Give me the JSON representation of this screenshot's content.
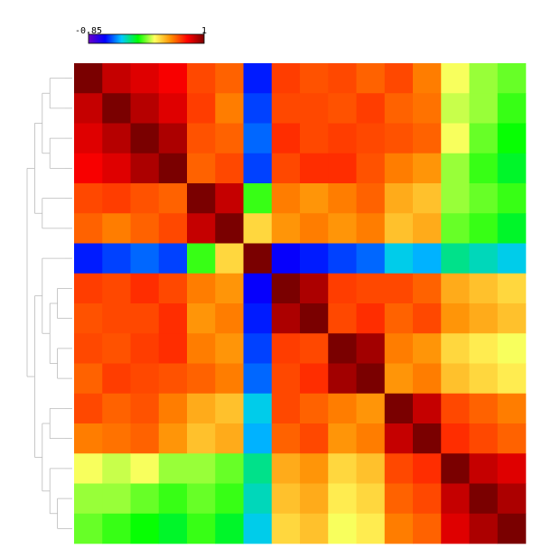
{
  "chart_data": {
    "type": "heatmap",
    "clim": [
      -0.85,
      1
    ],
    "cticks": [
      -0.85,
      1
    ],
    "colorscale": [
      "#6a00c8",
      "#0000ff",
      "#00c8ff",
      "#00ff00",
      "#ffff60",
      "#ff8c00",
      "#ff0000",
      "#7a0000"
    ],
    "z": [
      [
        1,
        0.85,
        0.8,
        0.75,
        0.6,
        0.55,
        -0.55,
        0.62,
        0.58,
        0.6,
        0.55,
        0.6,
        0.5,
        0.2,
        0.1,
        0.05
      ],
      [
        0.85,
        1,
        0.88,
        0.8,
        0.62,
        0.5,
        -0.5,
        0.6,
        0.6,
        0.58,
        0.62,
        0.55,
        0.52,
        0.15,
        0.1,
        0
      ],
      [
        0.8,
        0.88,
        1,
        0.9,
        0.58,
        0.55,
        -0.45,
        0.65,
        0.6,
        0.62,
        0.6,
        0.58,
        0.55,
        0.2,
        0.05,
        -0.05
      ],
      [
        0.75,
        0.8,
        0.9,
        1,
        0.55,
        0.6,
        -0.5,
        0.6,
        0.65,
        0.65,
        0.58,
        0.5,
        0.45,
        0.1,
        0,
        -0.1
      ],
      [
        0.6,
        0.62,
        0.58,
        0.55,
        1,
        0.85,
        0,
        0.5,
        0.45,
        0.5,
        0.55,
        0.4,
        0.35,
        0.1,
        0.05,
        0
      ],
      [
        0.55,
        0.5,
        0.55,
        0.6,
        0.85,
        1,
        0.3,
        0.45,
        0.5,
        0.45,
        0.5,
        0.35,
        0.4,
        0.05,
        0,
        -0.1
      ],
      [
        -0.55,
        -0.5,
        -0.45,
        -0.5,
        0,
        0.3,
        1,
        -0.6,
        -0.55,
        -0.5,
        -0.45,
        -0.3,
        -0.35,
        -0.2,
        -0.25,
        -0.3
      ],
      [
        0.62,
        0.6,
        0.65,
        0.6,
        0.5,
        0.45,
        -0.6,
        1,
        0.9,
        0.62,
        0.6,
        0.6,
        0.55,
        0.4,
        0.35,
        0.3
      ],
      [
        0.58,
        0.6,
        0.6,
        0.65,
        0.45,
        0.5,
        -0.55,
        0.9,
        1,
        0.6,
        0.65,
        0.55,
        0.6,
        0.45,
        0.4,
        0.35
      ],
      [
        0.6,
        0.58,
        0.62,
        0.65,
        0.5,
        0.45,
        -0.5,
        0.62,
        0.6,
        1,
        0.92,
        0.5,
        0.45,
        0.3,
        0.25,
        0.2
      ],
      [
        0.55,
        0.62,
        0.6,
        0.58,
        0.55,
        0.5,
        -0.45,
        0.6,
        0.65,
        0.92,
        1,
        0.45,
        0.5,
        0.35,
        0.3,
        0.25
      ],
      [
        0.6,
        0.55,
        0.58,
        0.5,
        0.4,
        0.35,
        -0.3,
        0.6,
        0.55,
        0.5,
        0.45,
        1,
        0.85,
        0.6,
        0.55,
        0.5
      ],
      [
        0.5,
        0.52,
        0.55,
        0.45,
        0.35,
        0.4,
        -0.35,
        0.55,
        0.6,
        0.45,
        0.5,
        0.85,
        1,
        0.65,
        0.6,
        0.55
      ],
      [
        0.2,
        0.15,
        0.2,
        0.1,
        0.1,
        0.05,
        -0.2,
        0.4,
        0.45,
        0.3,
        0.35,
        0.6,
        0.65,
        1,
        0.85,
        0.8
      ],
      [
        0.1,
        0.1,
        0.05,
        0,
        0.05,
        0,
        -0.25,
        0.35,
        0.4,
        0.25,
        0.3,
        0.55,
        0.6,
        0.85,
        1,
        0.9
      ],
      [
        0.05,
        0,
        -0.05,
        -0.1,
        0,
        -0.1,
        -0.3,
        0.3,
        0.35,
        0.2,
        0.25,
        0.5,
        0.55,
        0.8,
        0.9,
        1
      ]
    ]
  }
}
